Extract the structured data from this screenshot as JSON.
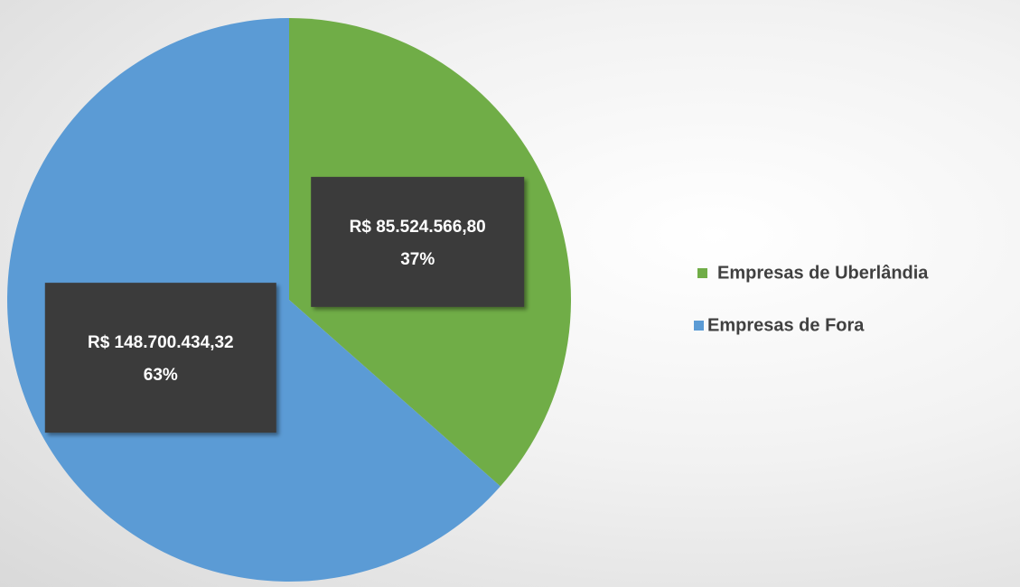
{
  "chart_data": {
    "type": "pie",
    "categories": [
      "Empresas de Uberlândia",
      "Empresas de Fora"
    ],
    "values": [
      85524566.8,
      148700434.32
    ],
    "value_labels": [
      "R$ 85.524.566,80",
      "R$ 148.700.434,32"
    ],
    "percent_labels": [
      "37%",
      "63%"
    ],
    "colors": [
      "#70ad47",
      "#5b9bd5"
    ],
    "legend": "right"
  }
}
